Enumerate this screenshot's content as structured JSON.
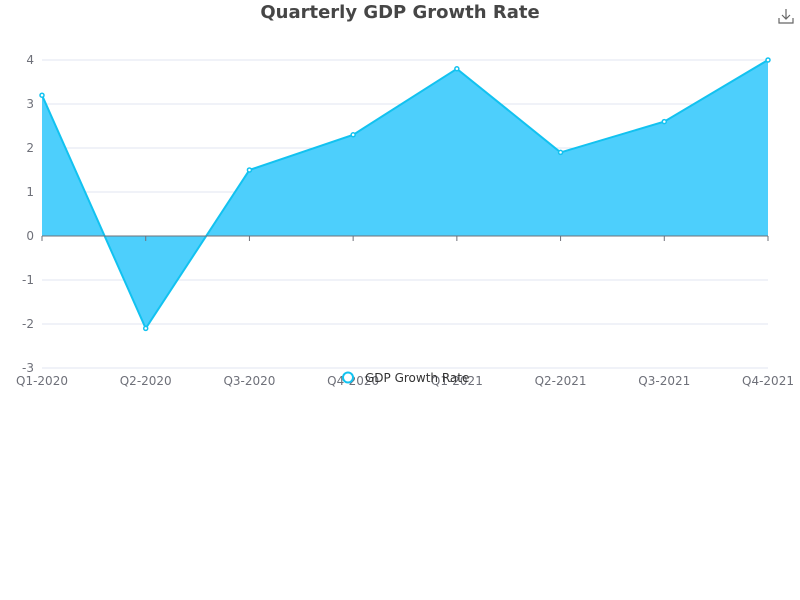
{
  "chart_data": {
    "type": "area",
    "title": "Quarterly GDP Growth Rate",
    "xlabel": "",
    "ylabel": "",
    "categories": [
      "Q1-2020",
      "Q2-2020",
      "Q3-2020",
      "Q4-2020",
      "Q1-2021",
      "Q2-2021",
      "Q3-2021",
      "Q4-2021"
    ],
    "series": [
      {
        "name": "GDP Growth Rate",
        "values": [
          3.2,
          -2.1,
          1.5,
          2.3,
          3.8,
          1.9,
          2.6,
          4.0
        ]
      }
    ],
    "ylim": [
      -3,
      4
    ],
    "yticks": [
      -3,
      -2,
      -1,
      0,
      1,
      2,
      3,
      4
    ],
    "grid": true,
    "legend_position": "bottom-center",
    "colors": {
      "line": "#12c2f0",
      "fill": "#4dcffc",
      "grid": "#e0e6f1",
      "axis": "#6e7079"
    }
  },
  "toolbar": {
    "save_icon": "download-icon"
  }
}
